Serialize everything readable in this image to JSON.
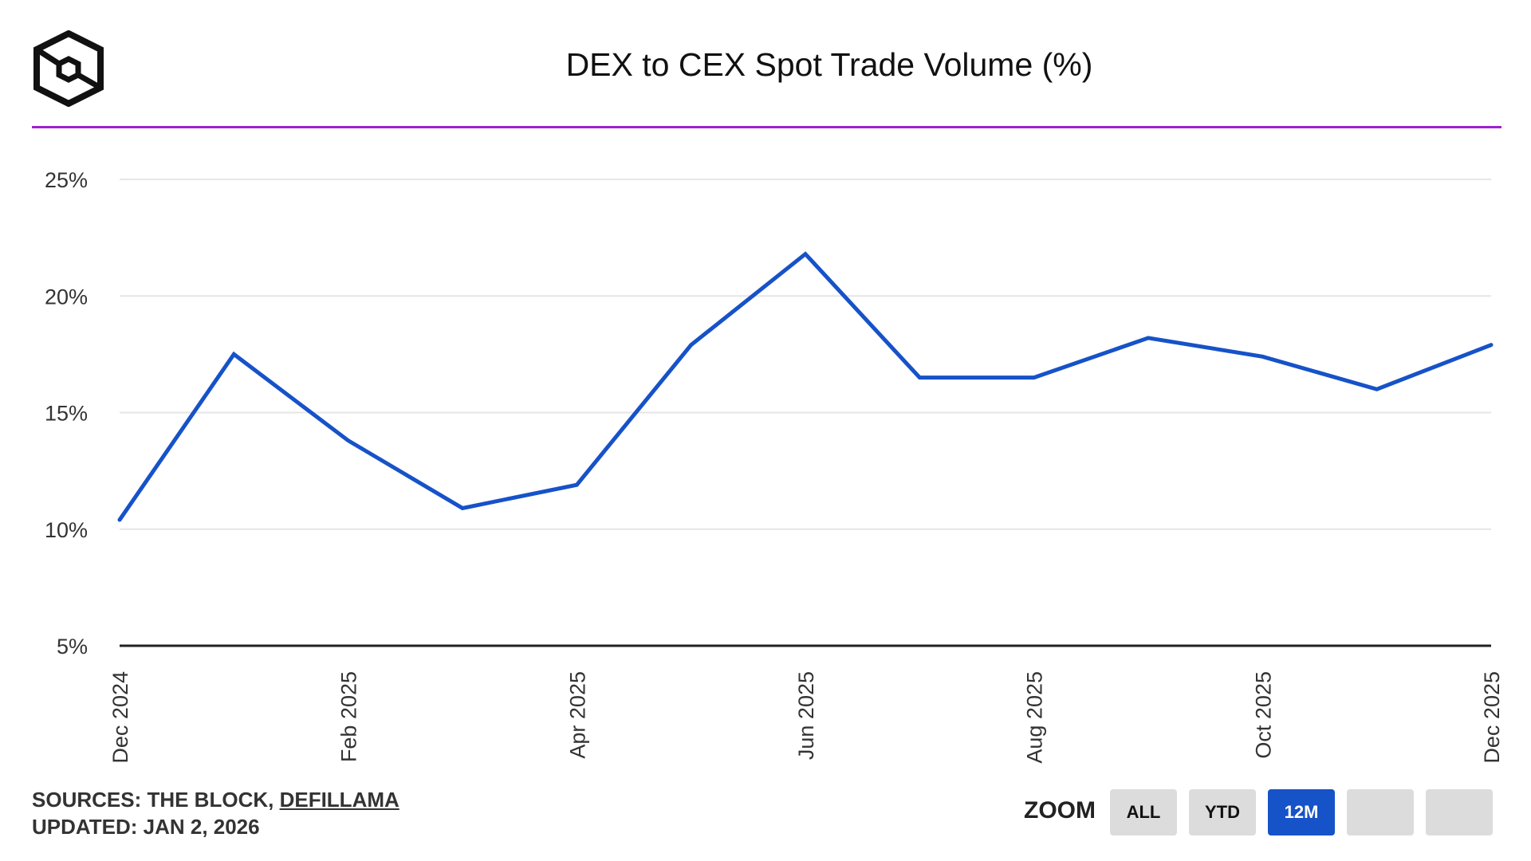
{
  "header": {
    "title": "DEX to CEX Spot Trade Volume (%)",
    "logo_icon": "the-block-cube-logo",
    "rule_color": "#a020d0"
  },
  "chart_data": {
    "type": "line",
    "title": "DEX to CEX Spot Trade Volume (%)",
    "xlabel": "",
    "ylabel": "",
    "y_unit": "%",
    "ylim": [
      5,
      25
    ],
    "yticks": [
      5,
      10,
      15,
      20,
      25
    ],
    "ytick_labels": [
      "5%",
      "10%",
      "15%",
      "20%",
      "25%"
    ],
    "x_tick_labels": [
      "Dec 2024",
      "Feb 2025",
      "Apr 2025",
      "Jun 2025",
      "Aug 2025",
      "Oct 2025",
      "Dec 2025"
    ],
    "x": [
      "Dec 2024",
      "Jan 2025",
      "Feb 2025",
      "Mar 2025",
      "Apr 2025",
      "May 2025",
      "Jun 2025",
      "Jul 2025",
      "Aug 2025",
      "Sep 2025",
      "Oct 2025",
      "Nov 2025",
      "Dec 2025"
    ],
    "series": [
      {
        "values": [
          10.4,
          17.5,
          13.8,
          10.9,
          11.9,
          17.9,
          21.8,
          16.5,
          16.5,
          18.2,
          17.4,
          16.0,
          17.9
        ],
        "color": "#1652c8"
      }
    ],
    "grid": true,
    "legend": "none"
  },
  "footer": {
    "sources_prefix": "SOURCES: THE BLOCK, ",
    "sources_link": "DEFILLAMA",
    "updated": "UPDATED: JAN 2, 2026"
  },
  "zoom": {
    "label": "ZOOM",
    "buttons": [
      "ALL",
      "YTD",
      "12M",
      "",
      ""
    ],
    "active": "12M",
    "active_color": "#1652c8"
  }
}
